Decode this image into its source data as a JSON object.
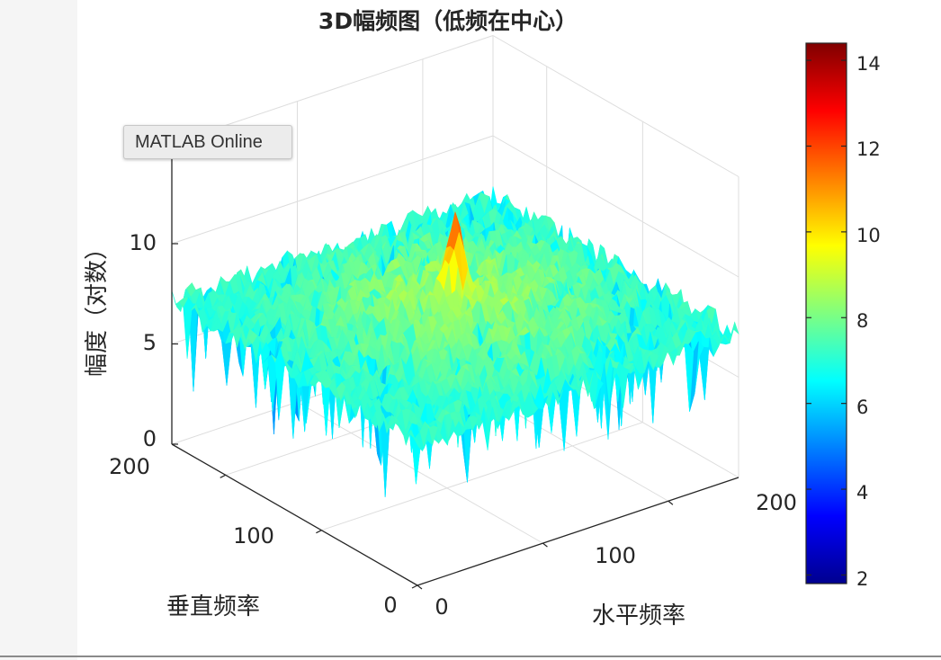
{
  "tooltip": {
    "text": "MATLAB Online"
  },
  "colors": {
    "background": "#ffffff",
    "gutter": "#f5f5f5",
    "grid": "#dddddd",
    "axis": "#262626",
    "colormap": "jet"
  },
  "chart_data": {
    "type": "surface",
    "title": "3D幅频图（低频在中心）",
    "xlabel": "水平频率",
    "ylabel": "垂直频率",
    "zlabel": "幅度（对数）",
    "x_ticks": [
      "0",
      "100",
      "200"
    ],
    "y_ticks": [
      "0",
      "100",
      "200"
    ],
    "z_ticks": [
      "0",
      "5",
      "10"
    ],
    "xlim": [
      0,
      256
    ],
    "ylim": [
      0,
      256
    ],
    "zlim": [
      0,
      15
    ],
    "colorbar": {
      "ticks": [
        "2",
        "4",
        "6",
        "8",
        "10",
        "12",
        "14"
      ],
      "range": [
        1.8,
        14.4
      ],
      "colormap": "jet"
    },
    "surface": {
      "size": [
        256,
        256
      ],
      "center_peak": 12.4,
      "typical_level": 7.5,
      "edge_level": 6.5,
      "min": 2,
      "max": 14.4
    },
    "grid": true,
    "view": "3d"
  }
}
